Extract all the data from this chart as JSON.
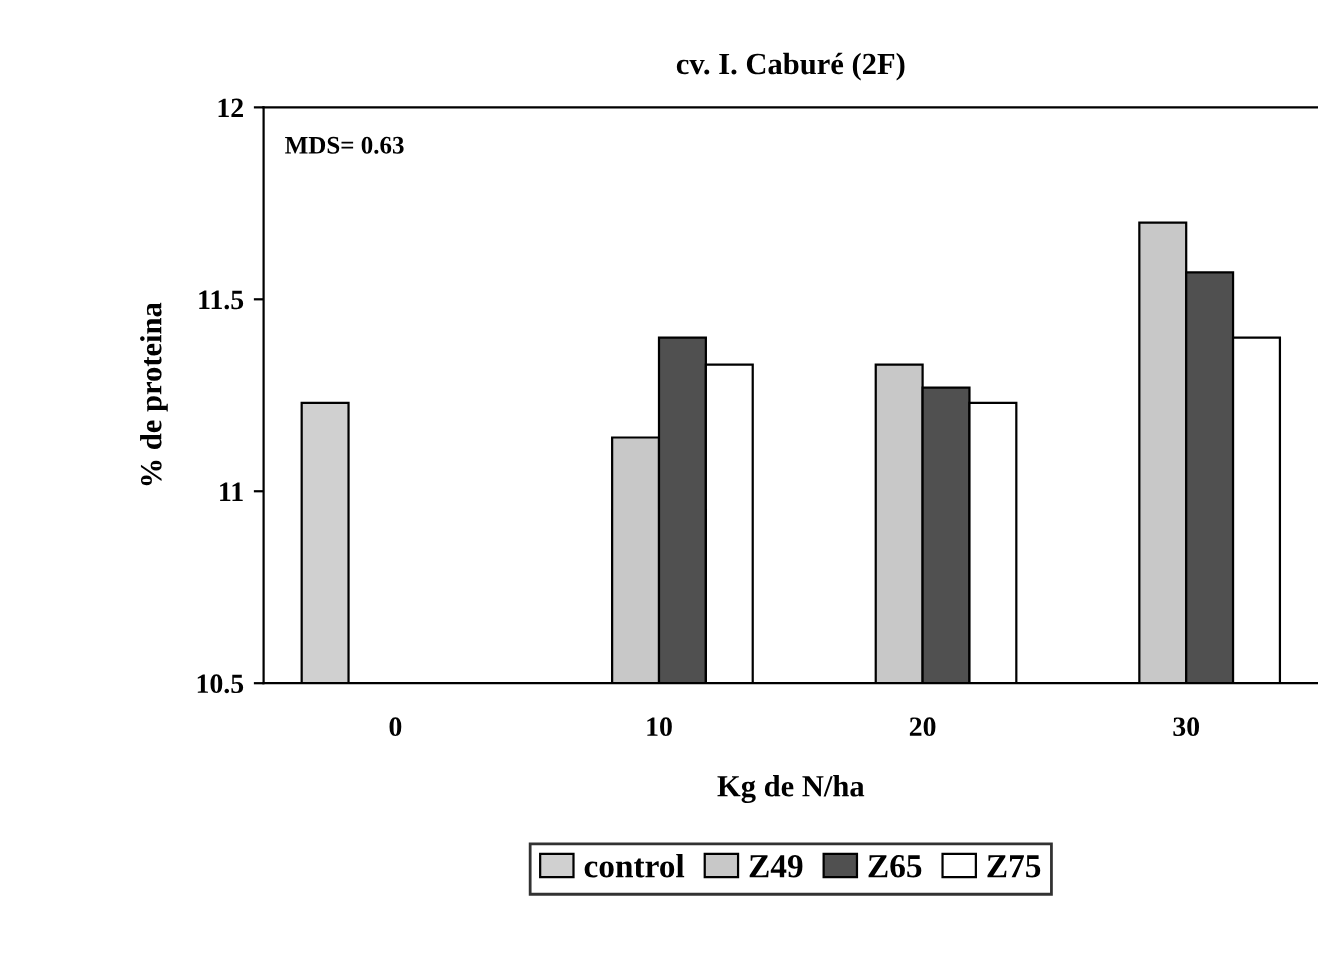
{
  "chart_data": {
    "type": "bar",
    "title": "cv. I. Caburé (2F)",
    "xlabel": "Kg de N/ha",
    "ylabel": "% de proteina",
    "categories": [
      "0",
      "10",
      "20",
      "30"
    ],
    "series": [
      {
        "name": "control",
        "color": "#d0d0d0",
        "values": [
          11.23,
          null,
          null,
          null
        ]
      },
      {
        "name": "Z49",
        "color": "#c8c8c8",
        "values": [
          null,
          11.14,
          11.33,
          11.7
        ]
      },
      {
        "name": "Z65",
        "color": "#505050",
        "values": [
          null,
          11.4,
          11.27,
          11.57
        ]
      },
      {
        "name": "Z75",
        "color": "#ffffff",
        "values": [
          null,
          11.33,
          11.23,
          11.4
        ]
      }
    ],
    "ylim": [
      10.5,
      12
    ],
    "yticks": [
      10.5,
      11,
      11.5,
      12
    ],
    "annotations": [
      "MDS= 0.63"
    ],
    "legend": "bottom",
    "grid": false
  }
}
